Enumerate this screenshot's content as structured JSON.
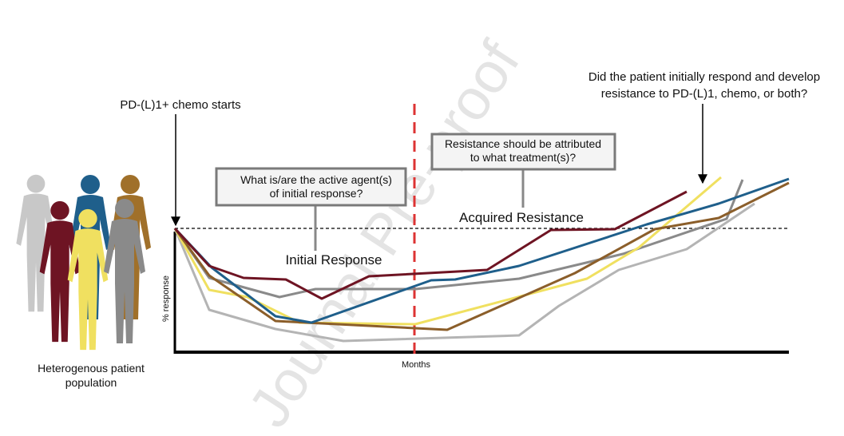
{
  "watermark": "Journal Pre-proof",
  "start_label": "PD-(L)1+ chemo starts",
  "question_top": [
    "Did the patient initially respond and develop",
    "resistance to PD-(L)1, chemo, or both?"
  ],
  "box_initial": [
    "What is/are the active agent(s)",
    "of initial response?"
  ],
  "box_resistance": [
    "Resistance should be attributed",
    "to what treatment(s)?"
  ],
  "initial_response": "Initial Response",
  "acquired_resistance": "Acquired Resistance",
  "y_axis_label": "% response",
  "x_axis_label": "Months",
  "population_label": [
    "Heterogenous patient",
    "population"
  ]
}
